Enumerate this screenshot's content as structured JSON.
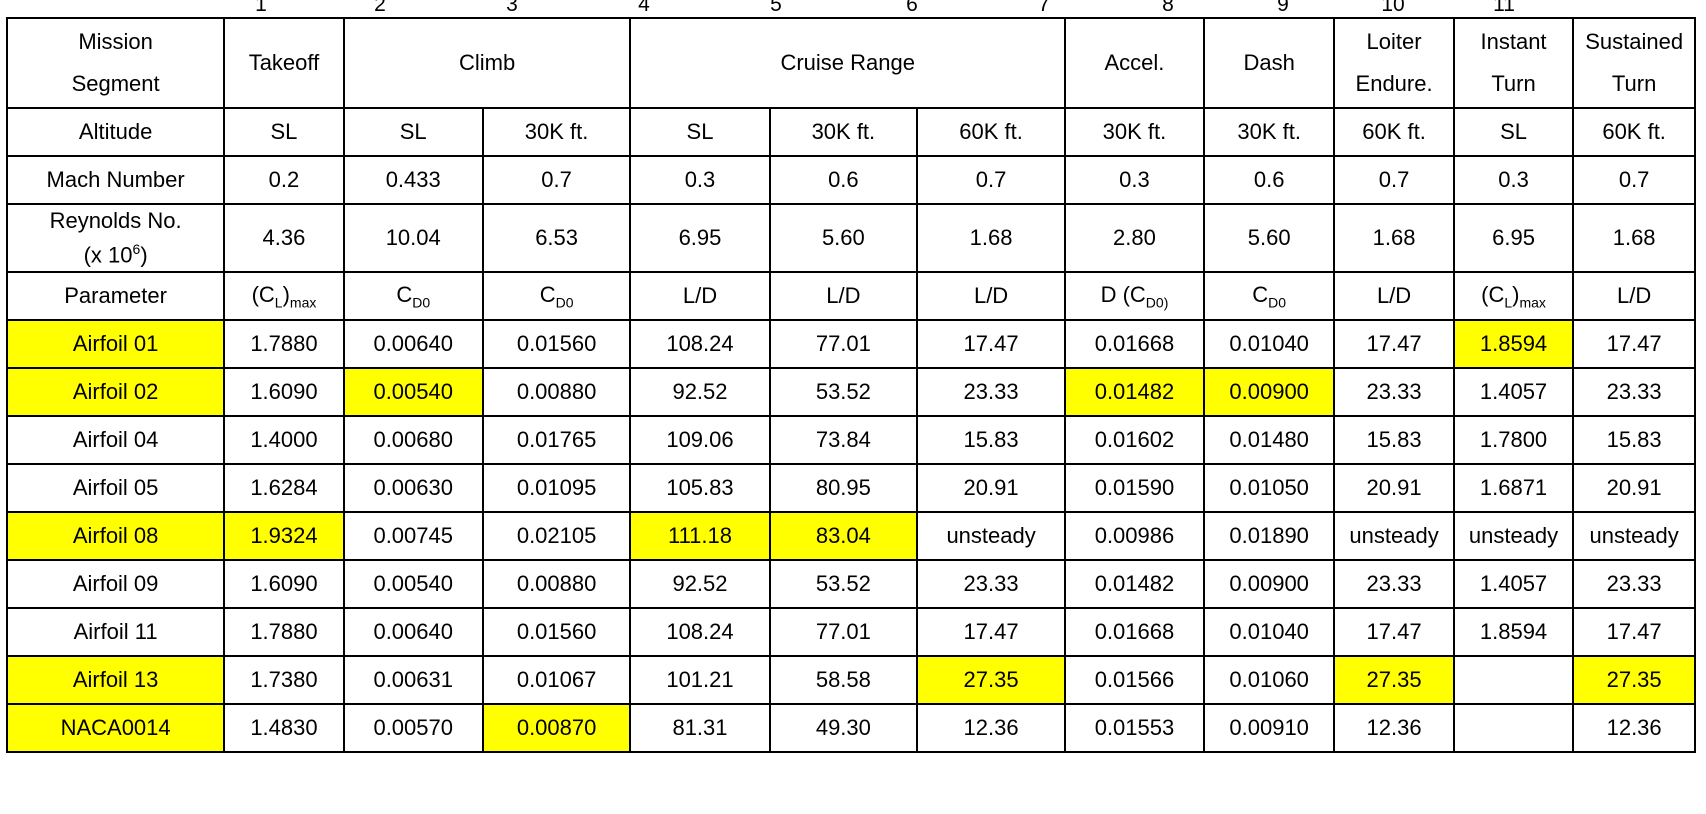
{
  "column_numbers": [
    "1",
    "2",
    "3",
    "4",
    "5",
    "6",
    "7",
    "8",
    "9",
    "10",
    "11"
  ],
  "header": {
    "mission_segment_label": [
      "Mission",
      "Segment"
    ],
    "segments": {
      "takeoff": "Takeoff",
      "climb": "Climb",
      "cruise": "Cruise Range",
      "accel": "Accel.",
      "dash": "Dash",
      "loiter": [
        "Loiter",
        "Endure."
      ],
      "instant": [
        "Instant",
        "Turn"
      ],
      "sustained": [
        "Sustained",
        "Turn"
      ]
    },
    "altitude_label": "Altitude",
    "altitudes": [
      "SL",
      "SL",
      "30K ft.",
      "SL",
      "30K ft.",
      "60K ft.",
      "30K ft.",
      "30K ft.",
      "60K ft.",
      "SL",
      "60K ft."
    ],
    "mach_label": "Mach Number",
    "mach": [
      "0.2",
      "0.433",
      "0.7",
      "0.3",
      "0.6",
      "0.7",
      "0.3",
      "0.6",
      "0.7",
      "0.3",
      "0.7"
    ],
    "reynolds_label": {
      "line1": "Reynolds No.",
      "line2_pre": "(x 10",
      "line2_sup": "6",
      "line2_post": ")"
    },
    "reynolds": [
      "4.36",
      "10.04",
      "6.53",
      "6.95",
      "5.60",
      "1.68",
      "2.80",
      "5.60",
      "1.68",
      "6.95",
      "1.68"
    ],
    "parameter_label": "Parameter",
    "parameters": {
      "clmax": {
        "open": "(C",
        "sub": "L",
        "close": ")",
        "sub2": "max"
      },
      "cd0": {
        "main": "C",
        "sub": "D0"
      },
      "ld": "L/D",
      "dcd0": {
        "pre": "D (C",
        "sub": "D0)",
        "post": ")"
      }
    }
  },
  "rows": [
    {
      "name": "Airfoil 01",
      "highlight": true,
      "values": [
        "1.7880",
        "0.00640",
        "0.01560",
        "108.24",
        "77.01",
        "17.47",
        "0.01668",
        "0.01040",
        "17.47",
        "1.8594",
        "17.47"
      ],
      "highlights": [
        false,
        false,
        false,
        false,
        false,
        false,
        false,
        false,
        false,
        true,
        false
      ]
    },
    {
      "name": "Airfoil 02",
      "highlight": true,
      "values": [
        "1.6090",
        "0.00540",
        "0.00880",
        "92.52",
        "53.52",
        "23.33",
        "0.01482",
        "0.00900",
        "23.33",
        "1.4057",
        "23.33"
      ],
      "highlights": [
        false,
        true,
        false,
        false,
        false,
        false,
        true,
        true,
        false,
        false,
        false
      ]
    },
    {
      "name": "Airfoil 04",
      "highlight": false,
      "values": [
        "1.4000",
        "0.00680",
        "0.01765",
        "109.06",
        "73.84",
        "15.83",
        "0.01602",
        "0.01480",
        "15.83",
        "1.7800",
        "15.83"
      ],
      "highlights": [
        false,
        false,
        false,
        false,
        false,
        false,
        false,
        false,
        false,
        false,
        false
      ]
    },
    {
      "name": "Airfoil 05",
      "highlight": false,
      "values": [
        "1.6284",
        "0.00630",
        "0.01095",
        "105.83",
        "80.95",
        "20.91",
        "0.01590",
        "0.01050",
        "20.91",
        "1.6871",
        "20.91"
      ],
      "highlights": [
        false,
        false,
        false,
        false,
        false,
        false,
        false,
        false,
        false,
        false,
        false
      ]
    },
    {
      "name": "Airfoil 08",
      "highlight": true,
      "values": [
        "1.9324",
        "0.00745",
        "0.02105",
        "111.18",
        "83.04",
        "unsteady",
        "0.00986",
        "0.01890",
        "unsteady",
        "unsteady",
        "unsteady"
      ],
      "highlights": [
        true,
        false,
        false,
        true,
        true,
        false,
        false,
        false,
        false,
        false,
        false
      ]
    },
    {
      "name": "Airfoil 09",
      "highlight": false,
      "values": [
        "1.6090",
        "0.00540",
        "0.00880",
        "92.52",
        "53.52",
        "23.33",
        "0.01482",
        "0.00900",
        "23.33",
        "1.4057",
        "23.33"
      ],
      "highlights": [
        false,
        false,
        false,
        false,
        false,
        false,
        false,
        false,
        false,
        false,
        false
      ]
    },
    {
      "name": "Airfoil 11",
      "highlight": false,
      "values": [
        "1.7880",
        "0.00640",
        "0.01560",
        "108.24",
        "77.01",
        "17.47",
        "0.01668",
        "0.01040",
        "17.47",
        "1.8594",
        "17.47"
      ],
      "highlights": [
        false,
        false,
        false,
        false,
        false,
        false,
        false,
        false,
        false,
        false,
        false
      ]
    },
    {
      "name": "Airfoil 13",
      "highlight": true,
      "values": [
        "1.7380",
        "0.00631",
        "0.01067",
        "101.21",
        "58.58",
        "27.35",
        "0.01566",
        "0.01060",
        "27.35",
        "",
        "27.35"
      ],
      "highlights": [
        false,
        false,
        false,
        false,
        false,
        true,
        false,
        false,
        true,
        false,
        true
      ]
    },
    {
      "name": "NACA0014",
      "highlight": true,
      "values": [
        "1.4830",
        "0.00570",
        "0.00870",
        "81.31",
        "49.30",
        "12.36",
        "0.01553",
        "0.00910",
        "12.36",
        "",
        "12.36"
      ],
      "highlights": [
        false,
        false,
        true,
        false,
        false,
        false,
        false,
        false,
        false,
        false,
        false
      ]
    }
  ],
  "colors": {
    "highlight": "#ffff00",
    "border": "#000000"
  }
}
